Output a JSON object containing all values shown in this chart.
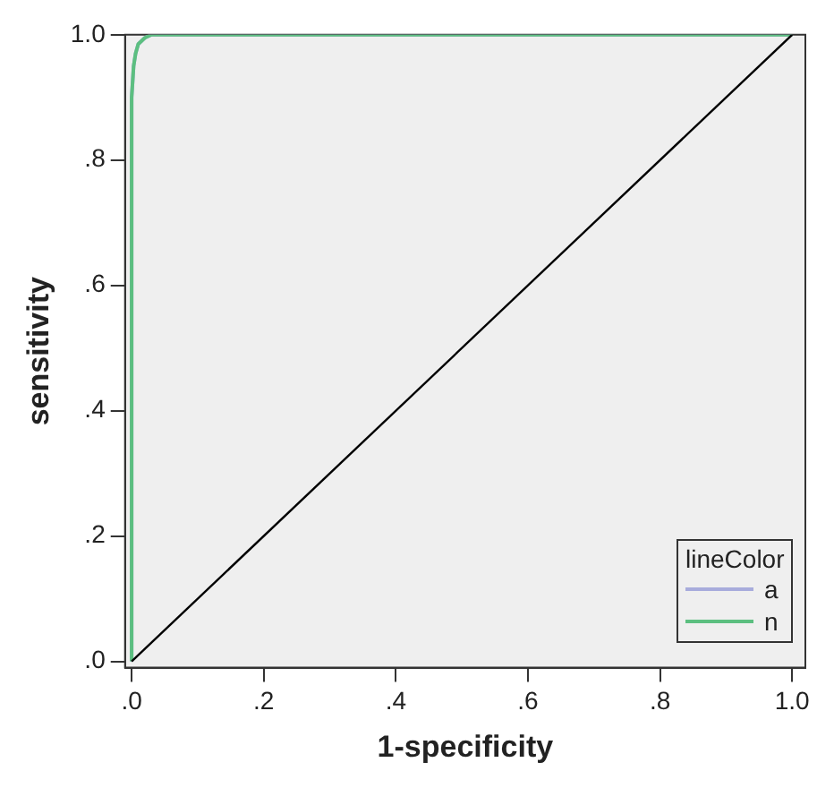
{
  "chart_data": {
    "type": "line",
    "xlabel": "1-specificity",
    "ylabel": "sensitivity",
    "legend_title": "lineColor",
    "legend": "bottom right",
    "grid": false,
    "marker": "none",
    "line_style": "solid",
    "xlim": [
      -0.01,
      1.02
    ],
    "ylim": [
      -0.01,
      1.0
    ],
    "xticks": [
      {
        "value": 0,
        "label": ".0"
      },
      {
        "value": 0.2,
        "label": ".2"
      },
      {
        "value": 0.4,
        "label": ".4"
      },
      {
        "value": 0.6,
        "label": ".6"
      },
      {
        "value": 0.8,
        "label": ".8"
      },
      {
        "value": 1,
        "label": "1.0"
      }
    ],
    "yticks": [
      {
        "value": 0,
        "label": ".0"
      },
      {
        "value": 0.2,
        "label": ".2"
      },
      {
        "value": 0.4,
        "label": ".4"
      },
      {
        "value": 0.6,
        "label": ".6"
      },
      {
        "value": 0.8,
        "label": ".8"
      },
      {
        "value": 1,
        "label": "1.0"
      }
    ],
    "series": [
      {
        "name": "a",
        "color": "#a8acdc",
        "x": [
          0,
          0,
          0.003,
          0.006,
          0.01,
          0.02,
          0.03,
          1
        ],
        "values": [
          0,
          0.9,
          0.95,
          0.97,
          0.985,
          0.995,
          1,
          1
        ]
      },
      {
        "name": "n",
        "color": "#5cbf80",
        "x": [
          0,
          0,
          0.003,
          0.006,
          0.01,
          0.02,
          0.03,
          1
        ],
        "values": [
          0,
          0.9,
          0.95,
          0.97,
          0.985,
          0.995,
          1,
          1
        ]
      },
      {
        "color": "#000000",
        "x": [
          0,
          1
        ],
        "values": [
          0,
          1
        ]
      }
    ]
  }
}
